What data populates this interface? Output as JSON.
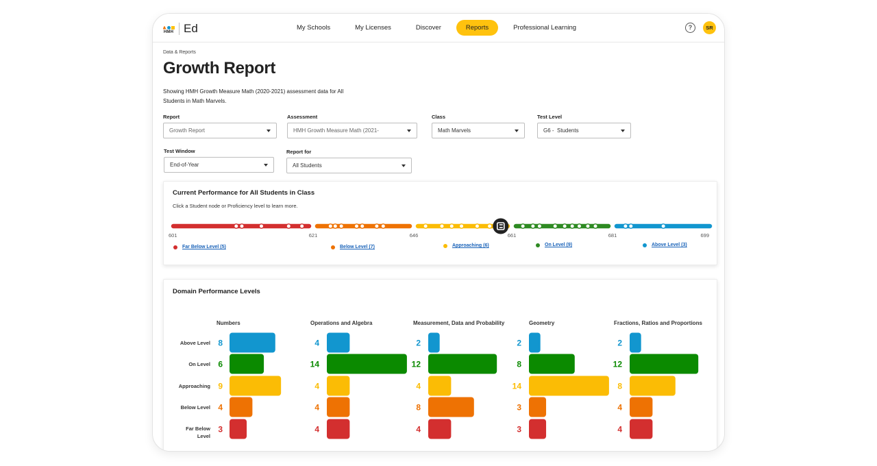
{
  "nav": {
    "logo_text": "HMH",
    "app_name": "Ed",
    "items": [
      {
        "label": "My Schools",
        "active": false
      },
      {
        "label": "My Licenses",
        "active": false
      },
      {
        "label": "Discover",
        "active": false
      },
      {
        "label": "Reports",
        "active": true
      },
      {
        "label": "Professional Learning",
        "active": false
      }
    ],
    "help_icon": "?",
    "avatar_initials": "SR"
  },
  "breadcrumb": "Data & Reports",
  "page_title": "Growth Report",
  "subtitle": "Showing HMH Growth Measure Math (2020-2021) assessment data for All Students in Math Marvels.",
  "filters": {
    "report": {
      "label": "Report",
      "value": "Growth Report"
    },
    "assessment": {
      "label": "Assessment",
      "value": "HMH Growth Measure Math (2021-"
    },
    "class": {
      "label": "Class",
      "value": "Math Marvels"
    },
    "test_level": {
      "label": "Test Level",
      "value": "G6 -  Students"
    },
    "test_window": {
      "label": "Test Window",
      "value": "End-of-Year"
    },
    "report_for": {
      "label": "Report for",
      "value": "All Students"
    }
  },
  "current_performance": {
    "title": "Current Performance for All Students in Class",
    "subtitle": "Click a Student node or Proficiency level to learn more.",
    "scale_ticks": [
      "601",
      "621",
      "646",
      "661",
      "681",
      "699"
    ],
    "bands": [
      {
        "key": "far_below",
        "from": 601,
        "to": 621,
        "color": "#d32f2f"
      },
      {
        "key": "below",
        "from": 621,
        "to": 646,
        "color": "#ee7203"
      },
      {
        "key": "approaching",
        "from": 646,
        "to": 661,
        "color": "#fbbc05"
      },
      {
        "key": "on",
        "from": 661,
        "to": 681,
        "color": "#2e8a22"
      },
      {
        "key": "above",
        "from": 681,
        "to": 699,
        "color": "#1296cf"
      }
    ],
    "student_nodes": [
      {
        "score": 610,
        "band": "far_below"
      },
      {
        "score": 610.8,
        "band": "far_below"
      },
      {
        "score": 613.6,
        "band": "far_below"
      },
      {
        "score": 617.5,
        "band": "far_below"
      },
      {
        "score": 619.4,
        "band": "far_below"
      },
      {
        "score": 625.3,
        "band": "below"
      },
      {
        "score": 626.5,
        "band": "below"
      },
      {
        "score": 628,
        "band": "below"
      },
      {
        "score": 631.8,
        "band": "below"
      },
      {
        "score": 633.2,
        "band": "below"
      },
      {
        "score": 636.8,
        "band": "below"
      },
      {
        "score": 638.4,
        "band": "below"
      },
      {
        "score": 647.8,
        "band": "approaching"
      },
      {
        "score": 650.3,
        "band": "approaching"
      },
      {
        "score": 651.8,
        "band": "approaching"
      },
      {
        "score": 653.3,
        "band": "approaching"
      },
      {
        "score": 655.7,
        "band": "approaching"
      },
      {
        "score": 657.6,
        "band": "approaching"
      },
      {
        "score": 663.2,
        "band": "on"
      },
      {
        "score": 665.2,
        "band": "on"
      },
      {
        "score": 666.5,
        "band": "on"
      },
      {
        "score": 669.6,
        "band": "on"
      },
      {
        "score": 671.5,
        "band": "on"
      },
      {
        "score": 673,
        "band": "on"
      },
      {
        "score": 674.4,
        "band": "on"
      },
      {
        "score": 676.1,
        "band": "on"
      },
      {
        "score": 677.6,
        "band": "on"
      },
      {
        "score": 683.4,
        "band": "above"
      },
      {
        "score": 684.4,
        "band": "above"
      },
      {
        "score": 690.4,
        "band": "above"
      }
    ],
    "class_marker": {
      "score": 659.3,
      "icon": "class-average-icon"
    },
    "legend": [
      {
        "label": "Far Below Level (5)",
        "color": "#d32f2f"
      },
      {
        "label": "Below Level (7)",
        "color": "#ee7203"
      },
      {
        "label": "Approaching (6)",
        "color": "#fbbc05"
      },
      {
        "label": "On Level (9)",
        "color": "#2e8a22"
      },
      {
        "label": "Above Level (3)",
        "color": "#1296cf"
      }
    ]
  },
  "domain_performance": {
    "title": "Domain Performance Levels",
    "levels": [
      "Above Level",
      "On Level",
      "Approaching",
      "Below Level",
      "Far Below Level"
    ],
    "level_colors": [
      "#1296cf",
      "#0b8a00",
      "#fbbc05",
      "#ee7203",
      "#d32f2f"
    ],
    "legend": [
      {
        "label": "Far Below Level",
        "color": "#d32f2f"
      },
      {
        "label": "Below Level",
        "color": "#ee7203"
      },
      {
        "label": "Approaching",
        "color": "#fbbc05"
      },
      {
        "label": "On Level",
        "color": "#0b8a00"
      },
      {
        "label": "Above Level",
        "color": "#1296cf"
      }
    ]
  },
  "chart_data": {
    "type": "bar",
    "orientation": "horizontal",
    "title": "Domain Performance Levels",
    "categories": [
      "Above Level",
      "On Level",
      "Approaching",
      "Below Level",
      "Far Below Level"
    ],
    "series": [
      {
        "name": "Numbers",
        "values": [
          8,
          6,
          9,
          4,
          3
        ]
      },
      {
        "name": "Operations and Algebra",
        "values": [
          4,
          14,
          4,
          4,
          4
        ]
      },
      {
        "name": "Measurement, Data and Probability",
        "values": [
          2,
          12,
          4,
          8,
          4
        ]
      },
      {
        "name": "Geometry",
        "values": [
          2,
          8,
          14,
          3,
          3
        ]
      },
      {
        "name": "Fractions, Ratios and Proportions",
        "values": [
          2,
          12,
          8,
          4,
          4
        ]
      }
    ],
    "xlim": [
      0,
      14
    ],
    "grid": false,
    "legend": "bottom"
  }
}
